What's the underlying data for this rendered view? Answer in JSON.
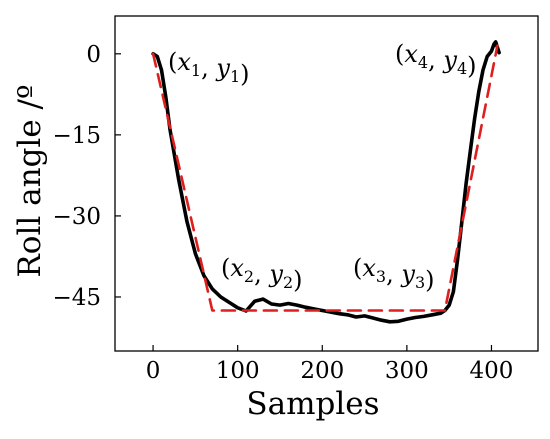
{
  "chart_data": {
    "type": "line",
    "title": "",
    "xlabel": "Samples",
    "ylabel": "Roll angle /º",
    "xlim": [
      -45,
      455
    ],
    "ylim": [
      -55,
      7
    ],
    "xticks": [
      0,
      100,
      200,
      300,
      400
    ],
    "yticks": [
      0,
      -15,
      -30,
      -45
    ],
    "xtick_labels": [
      "0",
      "100",
      "200",
      "300",
      "400"
    ],
    "ytick_labels": [
      "0",
      "−15",
      "−30",
      "−45"
    ],
    "grid": false,
    "colors": {
      "measured": "#000000",
      "fitted": "#dd1f1f"
    },
    "series": [
      {
        "style": "solid",
        "color": "#000000",
        "x": [
          0,
          5,
          10,
          15,
          20,
          30,
          40,
          50,
          60,
          70,
          80,
          90,
          100,
          110,
          120,
          130,
          140,
          150,
          160,
          170,
          180,
          190,
          200,
          210,
          220,
          230,
          240,
          250,
          260,
          270,
          280,
          290,
          300,
          310,
          320,
          330,
          340,
          345,
          350,
          355,
          360,
          365,
          370,
          375,
          380,
          385,
          390,
          395,
          400,
          403,
          405,
          407,
          409
        ],
        "y": [
          0,
          -0.5,
          -3,
          -8,
          -14,
          -23,
          -31,
          -37,
          -41,
          -43.5,
          -45,
          -46,
          -47,
          -47.6,
          -45.8,
          -45.4,
          -46.3,
          -46.5,
          -46.2,
          -46.5,
          -46.9,
          -47.2,
          -47.5,
          -47.8,
          -48.1,
          -48.3,
          -48.7,
          -48.5,
          -48.9,
          -49.3,
          -49.6,
          -49.5,
          -49.1,
          -48.8,
          -48.6,
          -48.3,
          -48,
          -47.5,
          -46.5,
          -44,
          -38,
          -31,
          -24,
          -18,
          -12,
          -7,
          -3,
          -0.5,
          0.5,
          1.8,
          2.2,
          1.2,
          0.2
        ]
      },
      {
        "style": "dashed",
        "color": "#dd1f1f",
        "x": [
          0,
          70,
          345,
          407
        ],
        "y": [
          0,
          -47.5,
          -47.5,
          1.5
        ]
      }
    ],
    "annotations": [
      {
        "base": "x",
        "base2": "y",
        "sub": "1"
      },
      {
        "base": "x",
        "base2": "y",
        "sub": "2"
      },
      {
        "base": "x",
        "base2": "y",
        "sub": "3"
      },
      {
        "base": "x",
        "base2": "y",
        "sub": "4"
      }
    ]
  }
}
